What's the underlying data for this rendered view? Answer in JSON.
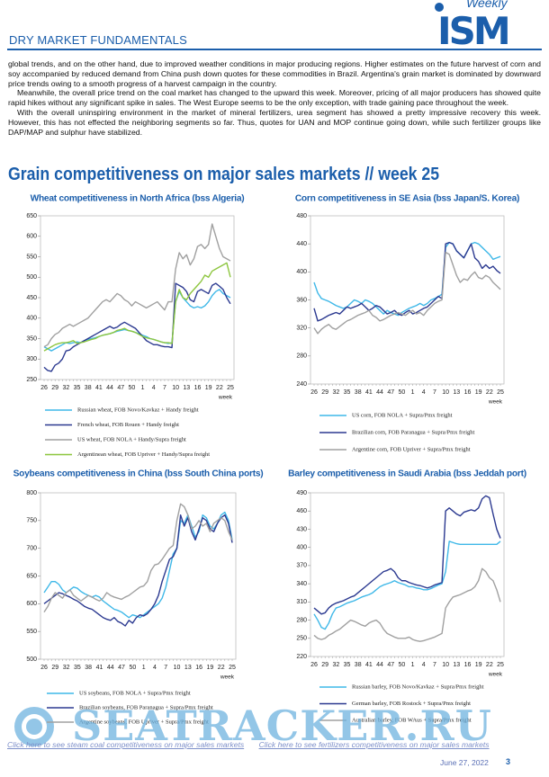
{
  "header": {
    "section": "DRY MARKET FUNDAMENTALS",
    "logo_weekly": "Weekly",
    "logo_text": "ISM"
  },
  "paragraphs": [
    "global trends, and on the other hand, due to improved weather conditions in major producing regions. Higher estimates on the future harvest of corn and soy accompanied by reduced demand from China push down quotes for these commodities in Brazil. Argentina's grain market is dominated by downward price trends owing to a smooth progress of a harvest campaign in the country.",
    "Meanwhile, the overall price trend on the coal market has changed to the upward this week. Moreover, pricing of all major producers has showed quite rapid hikes without any significant spike in sales. The West Europe seems to be the only exception, with trade gaining pace throughout the week.",
    "With the overall uninspiring environment in the market of mineral fertilizers, urea segment has showed a pretty impressive recovery this week. However, this has not effected the neighboring segments so far. Thus, quotes for UAN and MOP continue going down, while such fertilizer groups like DAP/MAP and sulphur have stabilized."
  ],
  "heading": "Grain competitiveness on major sales markets // week 25",
  "chart_data": [
    {
      "type": "line",
      "title": "Wheat competitiveness in North Africa (bss Algeria)",
      "x_label": "week",
      "categories": [
        "26",
        null,
        null,
        "29",
        null,
        null,
        "32",
        null,
        null,
        "35",
        null,
        null,
        "38",
        null,
        null,
        "41",
        null,
        null,
        "44",
        null,
        null,
        "47",
        null,
        null,
        "50",
        null,
        null,
        "1",
        null,
        null,
        "4",
        null,
        null,
        "7",
        null,
        null,
        "10",
        null,
        null,
        "13",
        null,
        null,
        "16",
        null,
        null,
        "19",
        null,
        null,
        "22",
        null,
        null,
        "25"
      ],
      "ylim": [
        250,
        650
      ],
      "yticks": [
        250,
        300,
        350,
        400,
        450,
        500,
        550,
        600,
        650
      ],
      "grid": false,
      "series": [
        {
          "name": "Russian wheat, FOB Novo/Kavkaz + Handy freight",
          "color": "#3fb8e8",
          "values": [
            330,
            325,
            320,
            325,
            330,
            335,
            340,
            338,
            340,
            342,
            340,
            345,
            348,
            350,
            352,
            355,
            358,
            360,
            362,
            365,
            368,
            370,
            372,
            370,
            368,
            365,
            362,
            358,
            355,
            350,
            348,
            345,
            342,
            340,
            338,
            340,
            440,
            465,
            450,
            440,
            430,
            425,
            428,
            425,
            430,
            440,
            455,
            465,
            470,
            460,
            455,
            450
          ]
        },
        {
          "name": "French wheat, FOB Rouen + Handy freight",
          "color": "#2b3990",
          "values": [
            280,
            272,
            270,
            285,
            290,
            300,
            320,
            322,
            330,
            335,
            340,
            345,
            350,
            355,
            360,
            365,
            370,
            375,
            380,
            375,
            378,
            385,
            390,
            385,
            380,
            375,
            365,
            355,
            345,
            340,
            335,
            335,
            332,
            330,
            330,
            328,
            485,
            480,
            475,
            465,
            445,
            440,
            465,
            470,
            465,
            460,
            480,
            485,
            478,
            470,
            450,
            435
          ]
        },
        {
          "name": "US wheat, FOB NOLA + Handy/Supra freight",
          "color": "#a0a0a0",
          "values": [
            330,
            335,
            350,
            360,
            365,
            375,
            380,
            385,
            380,
            385,
            390,
            395,
            400,
            410,
            420,
            430,
            440,
            445,
            440,
            450,
            460,
            455,
            445,
            440,
            430,
            440,
            435,
            430,
            425,
            430,
            435,
            440,
            430,
            420,
            440,
            440,
            520,
            560,
            545,
            555,
            530,
            545,
            575,
            580,
            570,
            580,
            630,
            600,
            570,
            550,
            545,
            540
          ]
        },
        {
          "name": "Argentinean wheat, FOB Upriver + Handy/Supra freight",
          "color": "#8dc63f",
          "values": [
            320,
            325,
            330,
            335,
            338,
            340,
            340,
            342,
            345,
            338,
            340,
            342,
            345,
            348,
            350,
            355,
            358,
            360,
            362,
            365,
            370,
            372,
            375,
            370,
            368,
            365,
            360,
            355,
            352,
            350,
            348,
            345,
            342,
            340,
            340,
            338,
            440,
            470,
            450,
            445,
            460,
            470,
            480,
            490,
            505,
            500,
            515,
            520,
            525,
            530,
            535,
            500
          ]
        }
      ]
    },
    {
      "type": "line",
      "title": "Corn competitiveness in SE Asia (bss Japan/S. Korea)",
      "x_label": "week",
      "categories": [
        "26",
        null,
        null,
        "29",
        null,
        null,
        "32",
        null,
        null,
        "35",
        null,
        null,
        "38",
        null,
        null,
        "41",
        null,
        null,
        "44",
        null,
        null,
        "47",
        null,
        null,
        "50",
        null,
        null,
        "1",
        null,
        null,
        "4",
        null,
        null,
        "7",
        null,
        null,
        "10",
        null,
        null,
        "13",
        null,
        null,
        "16",
        null,
        null,
        "19",
        null,
        null,
        "22",
        null,
        null,
        "25"
      ],
      "ylim": [
        240,
        480
      ],
      "yticks": [
        240,
        280,
        320,
        360,
        400,
        440,
        480
      ],
      "grid": false,
      "series": [
        {
          "name": "US corn, FOB NOLA + Supra/Pmx freight",
          "color": "#3fb8e8",
          "values": [
            385,
            370,
            362,
            360,
            358,
            355,
            352,
            350,
            348,
            350,
            355,
            360,
            358,
            355,
            360,
            358,
            355,
            350,
            345,
            340,
            345,
            342,
            340,
            338,
            342,
            345,
            348,
            350,
            352,
            355,
            352,
            355,
            360,
            362,
            365,
            368,
            435,
            442,
            440,
            430,
            425,
            420,
            430,
            440,
            442,
            440,
            435,
            430,
            425,
            418,
            420,
            422
          ]
        },
        {
          "name": "Brazilian corn, FOB Paranagua + Supra/Pmx freight",
          "color": "#2b3990",
          "values": [
            348,
            330,
            332,
            335,
            338,
            340,
            342,
            340,
            345,
            350,
            348,
            350,
            352,
            355,
            350,
            345,
            348,
            352,
            350,
            345,
            340,
            342,
            345,
            340,
            338,
            342,
            345,
            340,
            342,
            345,
            348,
            350,
            355,
            360,
            365,
            362,
            440,
            442,
            440,
            430,
            425,
            420,
            430,
            440,
            420,
            415,
            405,
            410,
            405,
            408,
            402,
            398
          ]
        },
        {
          "name": "Argentine corn, FOB Upriver + Supra/Pmx freight",
          "color": "#a0a0a0",
          "values": [
            320,
            312,
            318,
            322,
            325,
            320,
            318,
            322,
            326,
            330,
            332,
            335,
            338,
            340,
            342,
            345,
            338,
            335,
            330,
            332,
            335,
            338,
            340,
            342,
            340,
            338,
            342,
            345,
            340,
            342,
            338,
            345,
            350,
            355,
            358,
            360,
            428,
            425,
            410,
            395,
            385,
            390,
            388,
            395,
            400,
            392,
            390,
            395,
            392,
            385,
            380,
            375
          ]
        }
      ]
    },
    {
      "type": "line",
      "title": "Soybeans competitiveness in China (bss South China ports)",
      "x_label": "week",
      "categories": [
        "26",
        null,
        null,
        "29",
        null,
        null,
        "32",
        null,
        null,
        "35",
        null,
        null,
        "38",
        null,
        null,
        "41",
        null,
        null,
        "44",
        null,
        null,
        "47",
        null,
        null,
        "50",
        null,
        null,
        "1",
        null,
        null,
        "4",
        null,
        null,
        "7",
        null,
        null,
        "10",
        null,
        null,
        "13",
        null,
        null,
        "16",
        null,
        null,
        "19",
        null,
        null,
        "22",
        null,
        null,
        "25"
      ],
      "ylim": [
        500,
        800
      ],
      "yticks": [
        500,
        550,
        600,
        650,
        700,
        750,
        800
      ],
      "grid": false,
      "series": [
        {
          "name": "US soybeans, FOB NOLA + Supra/Pmx freight",
          "color": "#3fb8e8",
          "values": [
            620,
            630,
            640,
            640,
            635,
            625,
            620,
            625,
            630,
            628,
            622,
            618,
            615,
            612,
            615,
            612,
            605,
            600,
            595,
            590,
            588,
            585,
            580,
            575,
            580,
            578,
            575,
            580,
            585,
            590,
            595,
            600,
            610,
            630,
            660,
            690,
            700,
            750,
            745,
            760,
            740,
            720,
            730,
            760,
            755,
            740,
            735,
            745,
            760,
            765,
            750,
            715
          ]
        },
        {
          "name": "Brazilian soybeans, FOB Paranagua + Supra/Pmx freight",
          "color": "#2b3990",
          "values": [
            600,
            605,
            610,
            615,
            620,
            618,
            615,
            612,
            608,
            605,
            600,
            595,
            592,
            590,
            585,
            580,
            575,
            572,
            570,
            575,
            568,
            565,
            560,
            570,
            565,
            575,
            580,
            578,
            582,
            590,
            600,
            615,
            640,
            660,
            680,
            685,
            700,
            760,
            740,
            755,
            730,
            715,
            735,
            755,
            750,
            735,
            730,
            745,
            755,
            760,
            745,
            710
          ]
        },
        {
          "name": "Argentine soybeans, FOB Upriver + Supra/Pmx freight",
          "color": "#a0a0a0",
          "values": [
            585,
            595,
            610,
            620,
            615,
            610,
            620,
            625,
            615,
            610,
            605,
            610,
            615,
            612,
            608,
            605,
            610,
            620,
            615,
            612,
            610,
            608,
            612,
            615,
            620,
            625,
            630,
            632,
            640,
            660,
            670,
            672,
            680,
            690,
            700,
            705,
            750,
            780,
            775,
            760,
            735,
            740,
            750,
            740,
            745,
            730,
            745,
            750,
            755,
            750,
            730,
            715
          ]
        }
      ]
    },
    {
      "type": "line",
      "title": "Barley competitiveness in Saudi Arabia (bss Jeddah port)",
      "x_label": "week",
      "categories": [
        "26",
        null,
        null,
        "29",
        null,
        null,
        "32",
        null,
        null,
        "35",
        null,
        null,
        "38",
        null,
        null,
        "41",
        null,
        null,
        "44",
        null,
        null,
        "47",
        null,
        null,
        "50",
        null,
        null,
        "1",
        null,
        null,
        "4",
        null,
        null,
        "7",
        null,
        null,
        "10",
        null,
        null,
        "13",
        null,
        null,
        "16",
        null,
        null,
        "19",
        null,
        null,
        "22",
        null,
        null,
        "25"
      ],
      "ylim": [
        220,
        490
      ],
      "yticks": [
        220,
        250,
        280,
        310,
        340,
        370,
        400,
        430,
        460,
        490
      ],
      "grid": false,
      "series": [
        {
          "name": "Russian barley, FOB Novo/Kavkaz + Supra/Pmx freight",
          "color": "#3fb8e8",
          "values": [
            290,
            280,
            268,
            265,
            275,
            290,
            300,
            302,
            305,
            308,
            310,
            312,
            315,
            318,
            320,
            322,
            325,
            330,
            335,
            338,
            340,
            342,
            345,
            342,
            340,
            338,
            335,
            335,
            333,
            332,
            330,
            330,
            332,
            335,
            338,
            340,
            360,
            410,
            408,
            406,
            405,
            405,
            405,
            405,
            405,
            405,
            405,
            405,
            405,
            405,
            405,
            410
          ]
        },
        {
          "name": "German barley, FOB Rostock + Supra/Pmx freight",
          "color": "#2b3990",
          "values": [
            300,
            295,
            290,
            292,
            300,
            305,
            308,
            310,
            312,
            315,
            318,
            320,
            325,
            330,
            335,
            340,
            345,
            350,
            355,
            360,
            362,
            365,
            360,
            350,
            345,
            345,
            342,
            340,
            338,
            337,
            335,
            333,
            335,
            338,
            340,
            342,
            460,
            465,
            460,
            455,
            452,
            458,
            460,
            462,
            460,
            465,
            480,
            485,
            482,
            455,
            430,
            415
          ]
        },
        {
          "name": "Australian barley, FOB WAus + Supra/Pmx freight",
          "color": "#a0a0a0",
          "values": [
            255,
            250,
            248,
            250,
            255,
            258,
            262,
            265,
            270,
            275,
            280,
            278,
            275,
            272,
            270,
            275,
            278,
            280,
            275,
            265,
            258,
            255,
            252,
            250,
            250,
            250,
            252,
            248,
            246,
            245,
            246,
            248,
            250,
            252,
            255,
            258,
            300,
            310,
            318,
            320,
            322,
            325,
            328,
            330,
            335,
            345,
            365,
            360,
            350,
            345,
            330,
            310
          ]
        }
      ]
    }
  ],
  "footer": {
    "watermark": "SEATRACKER.RU",
    "links": [
      "Click here to see steam coal competitiveness on major sales markets",
      "Click here to see fertilizers competitiveness on major sales markets"
    ],
    "date": "June 27, 2022",
    "page": "3"
  }
}
